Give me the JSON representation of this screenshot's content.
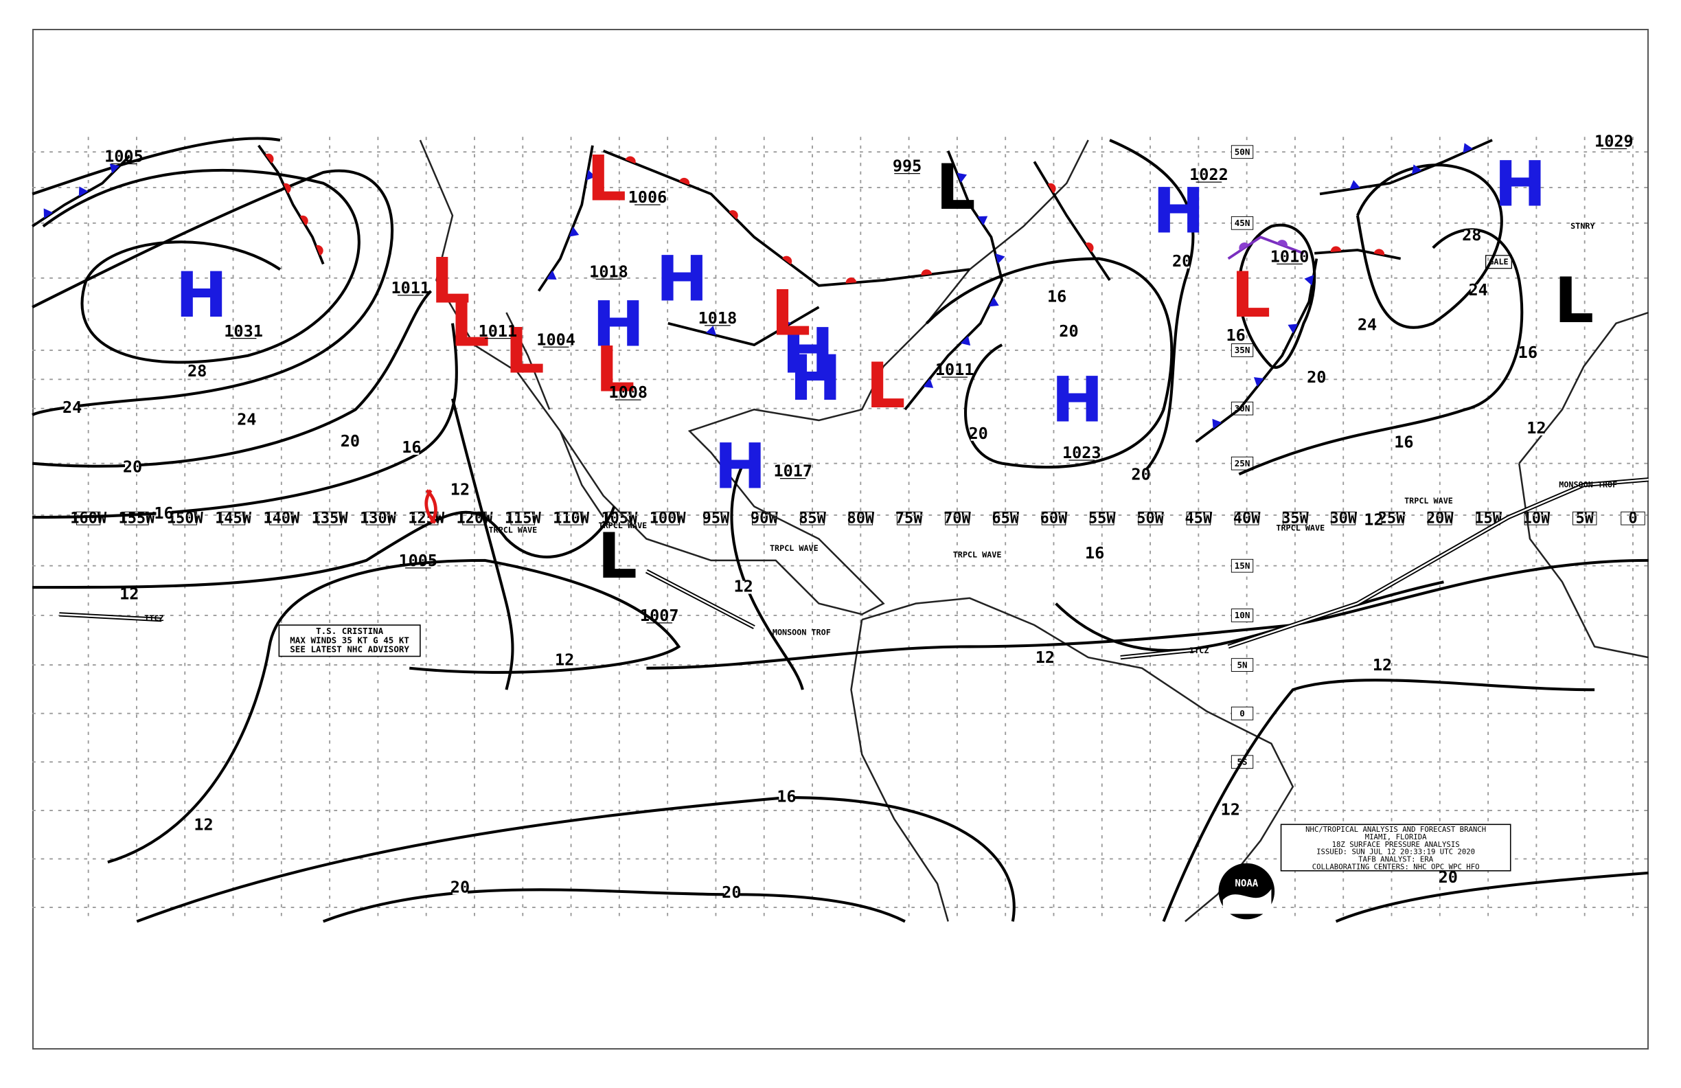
{
  "map": {
    "lon_labels": [
      "160W",
      "155W",
      "150W",
      "145W",
      "140W",
      "135W",
      "130W",
      "125W",
      "120W",
      "115W",
      "110W",
      "105W",
      "100W",
      "95W",
      "90W",
      "85W",
      "80W",
      "75W",
      "70W",
      "65W",
      "60W",
      "55W",
      "50W",
      "45W",
      "40W",
      "35W",
      "30W",
      "25W",
      "20W",
      "15W",
      "10W",
      "5W",
      "0"
    ],
    "lat_labels": [
      "50N",
      "45N",
      "35N",
      "30N",
      "25N",
      "15N",
      "10N",
      "5N",
      "0",
      "5S"
    ],
    "highs": [
      "H",
      "H",
      "H",
      "H",
      "H",
      "H",
      "H",
      "H",
      "H"
    ],
    "lows_red": [
      "L",
      "L",
      "L",
      "L",
      "L",
      "L",
      "L",
      "L"
    ],
    "lows_black": [
      "L",
      "L",
      "L"
    ],
    "pressures": [
      "1005",
      "1031",
      "1011",
      "1011",
      "1004",
      "1018",
      "1006",
      "1018",
      "1008",
      "995",
      "1022",
      "1010",
      "1011",
      "1017",
      "1023",
      "1005",
      "1007",
      "1029"
    ],
    "isobar_values": [
      "28",
      "24",
      "24",
      "24",
      "24",
      "20",
      "20",
      "20",
      "20",
      "20",
      "20",
      "20",
      "16",
      "16",
      "16",
      "16",
      "16",
      "16",
      "16",
      "16",
      "12",
      "12",
      "12",
      "12",
      "12",
      "12",
      "12",
      "12",
      "12",
      "12",
      "20",
      "20",
      "20",
      "28"
    ],
    "features": [
      "ITCZ",
      "ITCZ",
      "MONSOON TROF",
      "MONSOON TROF",
      "TRPCL WAVE",
      "TRPCL WAVE",
      "TRPCL WAVE",
      "TRPCL WAVE",
      "TRPCL WAVE",
      "TRPCL WAVE",
      "STNRY",
      "GALE"
    ],
    "storm_box": [
      "T.S. CRISTINA",
      "MAX WINDS 35 KT G 45 KT",
      "SEE LATEST NHC ADVISORY"
    ],
    "info_box": [
      "NHC/TROPICAL ANALYSIS AND FORECAST BRANCH",
      "MIAMI, FLORIDA",
      "18Z SURFACE PRESSURE ANALYSIS",
      "ISSUED: SUN JUL 12 20:33:19 UTC 2020",
      "TAFB ANALYST: ERA",
      "COLLABORATING CENTERS: NHC OPC WPC HFO"
    ],
    "logo": "NOAA"
  }
}
